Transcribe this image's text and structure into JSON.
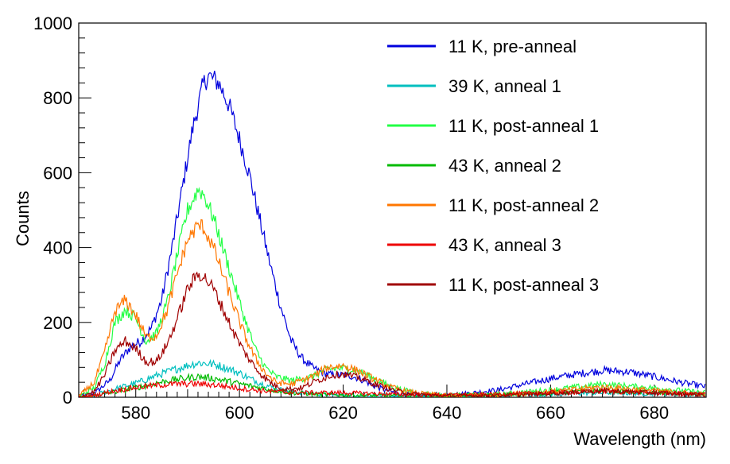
{
  "chart_data": {
    "type": "line",
    "title": "",
    "xlabel": "Wavelength (nm)",
    "ylabel": "Counts",
    "xlim": [
      569,
      690
    ],
    "ylim": [
      0,
      1000
    ],
    "x_ticks": [
      580,
      600,
      620,
      640,
      660,
      680
    ],
    "y_ticks": [
      0,
      200,
      400,
      600,
      800,
      1000
    ],
    "grid": false,
    "legend_position": "top-right",
    "series": [
      {
        "name": "11 K, pre-anneal",
        "color": "#0000dd",
        "points": [
          [
            569,
            2
          ],
          [
            572,
            10
          ],
          [
            575,
            45
          ],
          [
            577,
            100
          ],
          [
            579,
            135
          ],
          [
            581,
            150
          ],
          [
            583,
            185
          ],
          [
            585,
            260
          ],
          [
            587,
            400
          ],
          [
            589,
            560
          ],
          [
            591,
            720
          ],
          [
            593,
            835
          ],
          [
            594,
            860
          ],
          [
            596,
            840
          ],
          [
            598,
            780
          ],
          [
            600,
            690
          ],
          [
            602,
            590
          ],
          [
            604,
            470
          ],
          [
            606,
            350
          ],
          [
            608,
            240
          ],
          [
            610,
            150
          ],
          [
            612,
            105
          ],
          [
            614,
            80
          ],
          [
            616,
            65
          ],
          [
            618,
            60
          ],
          [
            620,
            60
          ],
          [
            622,
            55
          ],
          [
            624,
            45
          ],
          [
            626,
            30
          ],
          [
            628,
            20
          ],
          [
            630,
            12
          ],
          [
            632,
            8
          ],
          [
            634,
            6
          ],
          [
            636,
            5
          ],
          [
            638,
            5
          ],
          [
            640,
            6
          ],
          [
            645,
            12
          ],
          [
            650,
            20
          ],
          [
            655,
            35
          ],
          [
            660,
            50
          ],
          [
            665,
            62
          ],
          [
            670,
            72
          ],
          [
            675,
            68
          ],
          [
            680,
            55
          ],
          [
            685,
            40
          ],
          [
            690,
            28
          ]
        ]
      },
      {
        "name": "39 K, anneal 1",
        "color": "#00bfbf",
        "points": [
          [
            569,
            0
          ],
          [
            572,
            5
          ],
          [
            575,
            18
          ],
          [
            578,
            30
          ],
          [
            581,
            42
          ],
          [
            584,
            58
          ],
          [
            587,
            72
          ],
          [
            590,
            85
          ],
          [
            592,
            92
          ],
          [
            594,
            90
          ],
          [
            596,
            85
          ],
          [
            598,
            75
          ],
          [
            600,
            65
          ],
          [
            602,
            50
          ],
          [
            604,
            38
          ],
          [
            606,
            28
          ],
          [
            608,
            20
          ],
          [
            612,
            12
          ],
          [
            616,
            8
          ],
          [
            620,
            6
          ],
          [
            625,
            5
          ],
          [
            630,
            4
          ],
          [
            640,
            4
          ],
          [
            650,
            5
          ],
          [
            660,
            8
          ],
          [
            670,
            12
          ],
          [
            680,
            10
          ],
          [
            690,
            8
          ]
        ]
      },
      {
        "name": "11 K, post-anneal 1",
        "color": "#22ff44",
        "points": [
          [
            569,
            2
          ],
          [
            572,
            25
          ],
          [
            574,
            90
          ],
          [
            576,
            200
          ],
          [
            578,
            235
          ],
          [
            580,
            210
          ],
          [
            582,
            150
          ],
          [
            584,
            170
          ],
          [
            586,
            250
          ],
          [
            588,
            380
          ],
          [
            590,
            500
          ],
          [
            592,
            555
          ],
          [
            593,
            545
          ],
          [
            595,
            480
          ],
          [
            597,
            390
          ],
          [
            599,
            300
          ],
          [
            601,
            210
          ],
          [
            603,
            130
          ],
          [
            605,
            80
          ],
          [
            607,
            55
          ],
          [
            610,
            45
          ],
          [
            614,
            55
          ],
          [
            617,
            75
          ],
          [
            620,
            78
          ],
          [
            623,
            70
          ],
          [
            626,
            50
          ],
          [
            629,
            30
          ],
          [
            632,
            18
          ],
          [
            636,
            10
          ],
          [
            640,
            6
          ],
          [
            650,
            8
          ],
          [
            660,
            20
          ],
          [
            670,
            35
          ],
          [
            680,
            25
          ],
          [
            690,
            12
          ]
        ]
      },
      {
        "name": "43 K, anneal 2",
        "color": "#00bb00",
        "points": [
          [
            569,
            0
          ],
          [
            572,
            4
          ],
          [
            575,
            12
          ],
          [
            578,
            20
          ],
          [
            581,
            28
          ],
          [
            584,
            38
          ],
          [
            587,
            46
          ],
          [
            590,
            52
          ],
          [
            592,
            55
          ],
          [
            594,
            52
          ],
          [
            596,
            48
          ],
          [
            598,
            42
          ],
          [
            600,
            36
          ],
          [
            603,
            28
          ],
          [
            606,
            20
          ],
          [
            610,
            12
          ],
          [
            615,
            8
          ],
          [
            620,
            6
          ],
          [
            630,
            4
          ],
          [
            640,
            4
          ],
          [
            650,
            6
          ],
          [
            660,
            12
          ],
          [
            670,
            18
          ],
          [
            680,
            12
          ],
          [
            690,
            8
          ]
        ]
      },
      {
        "name": "11 K, post-anneal 2",
        "color": "#ff7700",
        "points": [
          [
            569,
            2
          ],
          [
            572,
            40
          ],
          [
            574,
            120
          ],
          [
            576,
            230
          ],
          [
            578,
            260
          ],
          [
            580,
            220
          ],
          [
            582,
            160
          ],
          [
            584,
            165
          ],
          [
            586,
            230
          ],
          [
            588,
            330
          ],
          [
            590,
            420
          ],
          [
            592,
            460
          ],
          [
            593,
            455
          ],
          [
            595,
            400
          ],
          [
            597,
            320
          ],
          [
            599,
            240
          ],
          [
            601,
            165
          ],
          [
            603,
            105
          ],
          [
            605,
            65
          ],
          [
            607,
            40
          ],
          [
            610,
            35
          ],
          [
            614,
            55
          ],
          [
            617,
            80
          ],
          [
            620,
            85
          ],
          [
            623,
            70
          ],
          [
            626,
            48
          ],
          [
            629,
            28
          ],
          [
            632,
            16
          ],
          [
            636,
            9
          ],
          [
            640,
            5
          ],
          [
            650,
            6
          ],
          [
            660,
            15
          ],
          [
            670,
            28
          ],
          [
            680,
            18
          ],
          [
            690,
            8
          ]
        ]
      },
      {
        "name": "43 K, anneal 3",
        "color": "#ee0000",
        "points": [
          [
            569,
            0
          ],
          [
            572,
            5
          ],
          [
            575,
            15
          ],
          [
            578,
            22
          ],
          [
            581,
            28
          ],
          [
            584,
            32
          ],
          [
            587,
            35
          ],
          [
            590,
            36
          ],
          [
            592,
            36
          ],
          [
            594,
            34
          ],
          [
            596,
            32
          ],
          [
            598,
            28
          ],
          [
            600,
            24
          ],
          [
            604,
            18
          ],
          [
            608,
            14
          ],
          [
            612,
            12
          ],
          [
            616,
            12
          ],
          [
            620,
            12
          ],
          [
            625,
            10
          ],
          [
            630,
            8
          ],
          [
            640,
            6
          ],
          [
            650,
            8
          ],
          [
            660,
            12
          ],
          [
            670,
            16
          ],
          [
            680,
            12
          ],
          [
            690,
            8
          ]
        ]
      },
      {
        "name": "11 K, post-anneal 3",
        "color": "#a00000",
        "points": [
          [
            569,
            0
          ],
          [
            572,
            15
          ],
          [
            574,
            60
          ],
          [
            576,
            125
          ],
          [
            578,
            150
          ],
          [
            580,
            130
          ],
          [
            582,
            95
          ],
          [
            584,
            95
          ],
          [
            586,
            140
          ],
          [
            588,
            210
          ],
          [
            590,
            290
          ],
          [
            592,
            330
          ],
          [
            593,
            325
          ],
          [
            595,
            290
          ],
          [
            597,
            230
          ],
          [
            599,
            170
          ],
          [
            601,
            120
          ],
          [
            603,
            80
          ],
          [
            605,
            50
          ],
          [
            607,
            30
          ],
          [
            609,
            22
          ],
          [
            612,
            25
          ],
          [
            615,
            45
          ],
          [
            618,
            60
          ],
          [
            620,
            62
          ],
          [
            623,
            52
          ],
          [
            626,
            36
          ],
          [
            629,
            22
          ],
          [
            632,
            12
          ],
          [
            636,
            6
          ],
          [
            640,
            4
          ],
          [
            650,
            5
          ],
          [
            660,
            10
          ],
          [
            670,
            18
          ],
          [
            680,
            12
          ],
          [
            690,
            6
          ]
        ]
      }
    ]
  }
}
